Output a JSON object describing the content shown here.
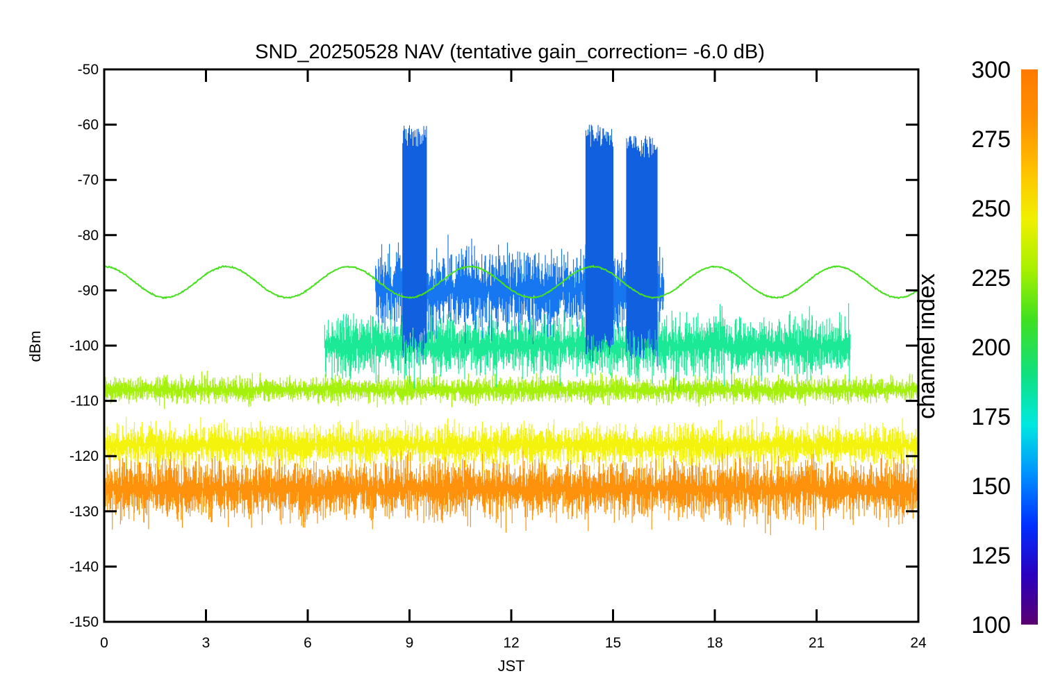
{
  "chart_data": {
    "type": "line",
    "title": "SND_20250528 NAV (tentative gain_correction= -6.0 dB)",
    "xlabel": "JST",
    "ylabel": "dBm",
    "xlim": [
      0,
      24
    ],
    "ylim": [
      -150,
      -50
    ],
    "x_ticks": [
      "0",
      "3",
      "6",
      "9",
      "12",
      "15",
      "18",
      "21",
      "24"
    ],
    "y_ticks": [
      "-50",
      "-60",
      "-70",
      "-80",
      "-90",
      "-100",
      "-110",
      "-120",
      "-130",
      "-140",
      "-150"
    ],
    "colorbar": {
      "label": "channel index",
      "range": [
        100,
        300
      ],
      "ticks": [
        "300",
        "275",
        "250",
        "225",
        "200",
        "175",
        "150",
        "125",
        "100"
      ],
      "colormap": [
        "#5a0070",
        "#2a00c0",
        "#0030ff",
        "#0090ff",
        "#00e8e0",
        "#10e080",
        "#40e020",
        "#a8f000",
        "#f0f000",
        "#ffc000",
        "#ff9000",
        "#ff7a00"
      ]
    },
    "bands": [
      {
        "channel": 290,
        "center": -126,
        "spread": 6,
        "x": [
          0,
          24
        ],
        "color": "#ff8c00"
      },
      {
        "channel": 270,
        "center": -118,
        "spread": 4,
        "x": [
          0,
          24
        ],
        "color": "#f2f200"
      },
      {
        "channel": 255,
        "center": -108,
        "spread": 2.5,
        "x": [
          0,
          24
        ],
        "color": "#a0f000"
      },
      {
        "channel": 195,
        "center": -100,
        "spread": 6,
        "x": [
          6.5,
          22
        ],
        "color": "#10e890"
      },
      {
        "channel": 160,
        "center": -90,
        "spread": 8,
        "x": [
          8,
          16.5
        ],
        "color": "#0a70f0"
      }
    ],
    "series": [
      {
        "channel": 240,
        "color": "#48e020",
        "mean": -88.5,
        "amplitude": 2.8,
        "period_hours": 3.6,
        "x": [
          0,
          24
        ]
      }
    ],
    "bursts": [
      {
        "x": [
          8.8,
          9.5
        ],
        "level": -60,
        "color": "#1060e0"
      },
      {
        "x": [
          14.2,
          15.0
        ],
        "level": -60,
        "color": "#1060e0"
      },
      {
        "x": [
          15.4,
          16.3
        ],
        "level": -62,
        "color": "#1060e0"
      }
    ]
  }
}
